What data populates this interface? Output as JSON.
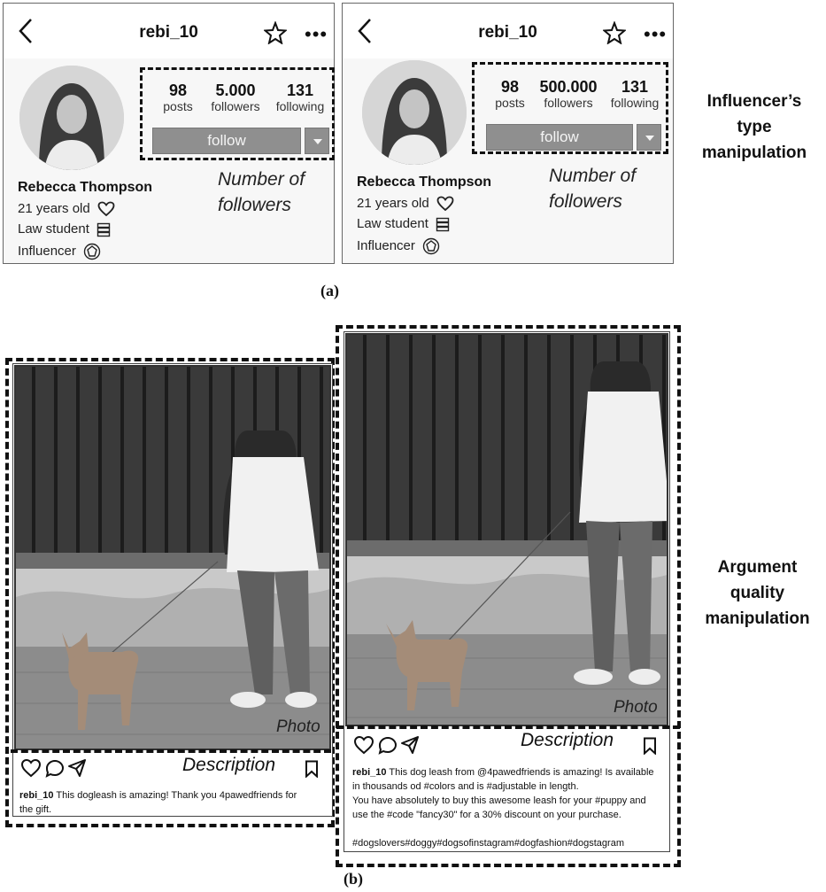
{
  "profiles": [
    {
      "username": "rebi_10",
      "posts_count": "98",
      "posts_label": "posts",
      "followers_count": "5.000",
      "followers_label": "followers",
      "following_count": "131",
      "following_label": "following",
      "follow_label": "follow",
      "name": "Rebecca Thompson",
      "age": "21 years old",
      "occupation": "Law student",
      "role": "Influencer",
      "annotation_line1": "Number of",
      "annotation_line2": "followers"
    },
    {
      "username": "rebi_10",
      "posts_count": "98",
      "posts_label": "posts",
      "followers_count": "500.000",
      "followers_label": "followers",
      "following_count": "131",
      "following_label": "following",
      "follow_label": "follow",
      "name": "Rebecca Thompson",
      "age": "21 years old",
      "occupation": "Law student",
      "role": "Influencer",
      "annotation_line1": "Number of",
      "annotation_line2": "followers"
    }
  ],
  "labels": {
    "influencer_line1": "Influencer’s",
    "influencer_line2": "type",
    "influencer_line3": "manipulation",
    "argument_line1": "Argument",
    "argument_line2": "quality",
    "argument_line3": "manipulation",
    "caption_a": "(a)",
    "caption_b": "(b)"
  },
  "posts": [
    {
      "photo_label": "Photo",
      "description_label": "Description",
      "author": "rebi_10",
      "text_line1": " This dogleash is amazing! Thank you 4pawedfriends for",
      "text_line2": "the gift."
    },
    {
      "photo_label": "Photo",
      "description_label": "Description",
      "author": "rebi_10",
      "text_line1": " This dog leash from @4pawedfriends is amazing! Is available",
      "text_line2": "in thousands od #colors and is #adjustable in length.",
      "text_line3": "You have absolutely to buy this awesome leash for your #puppy and",
      "text_line4": "use the #code \"fancy30\" for a 30% discount on your purchase.",
      "hashtags": "#dogslovers#doggy#dogsofinstagram#dogfashion#dogstagram"
    }
  ]
}
